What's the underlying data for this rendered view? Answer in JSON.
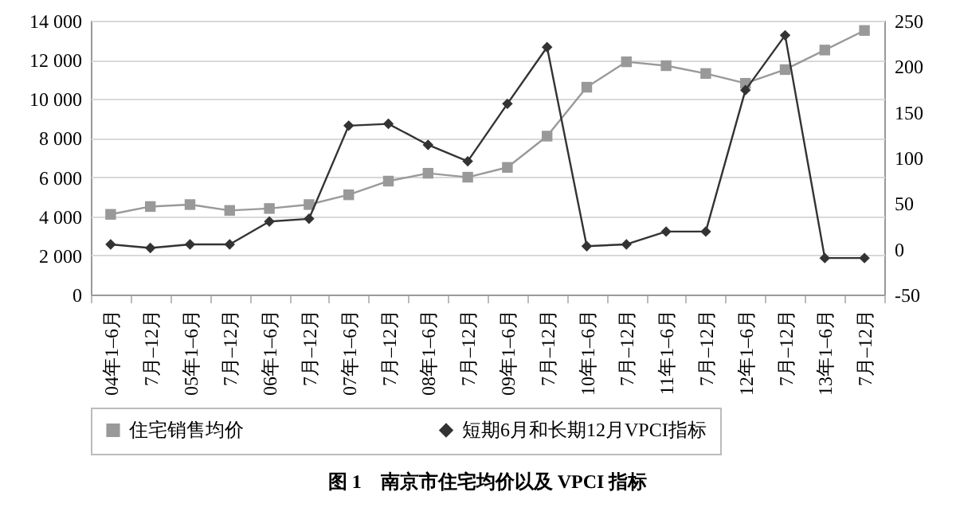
{
  "chart_data": {
    "type": "line",
    "title": "图 1　南京市住宅均价以及 VPCI 指标",
    "categories": [
      "04年1–6月",
      "7月–12月",
      "05年1–6月",
      "7月–12月",
      "06年1–6月",
      "7月–12月",
      "07年1–6月",
      "7月–12月",
      "08年1–6月",
      "7月–12月",
      "09年1–6月",
      "7月–12月",
      "10年1–6月",
      "7月–12月",
      "11年1–6月",
      "7月–12月",
      "12年1–6月",
      "7月–12月",
      "13年1–6月",
      "7月–12月"
    ],
    "series": [
      {
        "name": "住宅销售均价",
        "color": "#999999",
        "marker": "square",
        "values": [
          4100,
          4500,
          4600,
          4300,
          4400,
          4600,
          5100,
          5800,
          6200,
          6000,
          6500,
          8100,
          10600,
          11900,
          11700,
          11300,
          10800,
          11500,
          12500,
          13500
        ]
      },
      {
        "name": "短期6月和长期12月VPCI指标",
        "color": "#333333",
        "marker": "diamond",
        "axis": "y2",
        "values": [
          5,
          1,
          5,
          5,
          30,
          33,
          135,
          137,
          114,
          96,
          159,
          221,
          3,
          5,
          19,
          19,
          174,
          234,
          -10,
          -10
        ]
      }
    ],
    "ylim": [
      0,
      14000
    ],
    "yticks": [
      0,
      {
        "value": 2000,
        "label": "2 000"
      },
      {
        "value": 4000,
        "label": "4 000"
      },
      {
        "value": 6000,
        "label": "6 000"
      },
      {
        "value": 8000,
        "label": "8 000"
      },
      {
        "value": 10000,
        "label": "10 000"
      },
      {
        "value": 12000,
        "label": "12 000"
      },
      {
        "value": 14000,
        "label": "14 000"
      }
    ],
    "y2lim": [
      -50,
      250
    ],
    "y2ticks": [
      -50,
      0,
      50,
      100,
      150,
      200,
      250
    ],
    "grid": "y",
    "legend": "bottom",
    "line_style": "solid"
  }
}
